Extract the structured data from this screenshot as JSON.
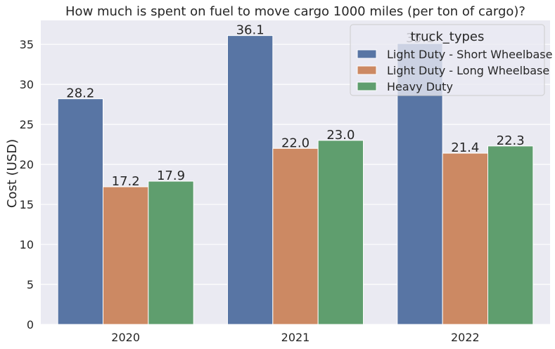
{
  "chart_data": {
    "type": "bar",
    "title": "How much is spent on fuel to move cargo 1000 miles (per ton of cargo)?",
    "xlabel": "",
    "ylabel": "Cost (USD)",
    "categories": [
      "2020",
      "2021",
      "2022"
    ],
    "series": [
      {
        "name": "Light Duty - Short Wheelbase",
        "values": [
          28.2,
          36.1,
          35.1
        ],
        "labels": [
          "28.2",
          "36.1",
          "35.1"
        ],
        "color": "#5875a4"
      },
      {
        "name": "Light Duty - Long Wheelbase",
        "values": [
          17.2,
          22.0,
          21.4
        ],
        "labels": [
          "17.2",
          "22.0",
          "21.4"
        ],
        "color": "#cc8963"
      },
      {
        "name": "Heavy Duty",
        "values": [
          17.9,
          23.0,
          22.3
        ],
        "labels": [
          "17.9",
          "23.0",
          "22.3"
        ],
        "color": "#5f9e6e"
      }
    ],
    "yticks": [
      0,
      5,
      10,
      15,
      20,
      25,
      30,
      35
    ],
    "ylim": [
      0,
      38
    ],
    "grid": true,
    "legend": {
      "title": "truck_types",
      "placement": "top-right"
    },
    "colors": {
      "background": "#eaeaf2",
      "grid": "#ffffff",
      "text": "#262626"
    }
  }
}
